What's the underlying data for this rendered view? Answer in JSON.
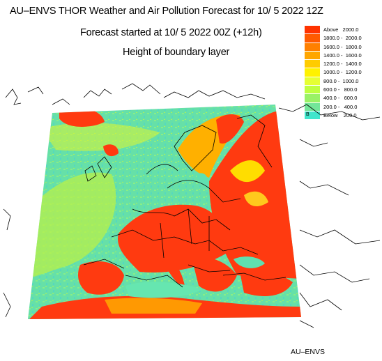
{
  "header": {
    "title": "AU–ENVS THOR Weather and Air Pollution Forecast for 10/ 5 2022  12Z",
    "subtitle": "Forecast started at 10/ 5 2022  00Z (+12h)",
    "field": "Height of boundary layer"
  },
  "legend": [
    {
      "label": "Above   2000.0",
      "color": "#ff3300",
      "tag": ""
    },
    {
      "label": "1800.0 -  2000.0",
      "color": "#ff5a00",
      "tag": ""
    },
    {
      "label": "1600.0 -  1800.0",
      "color": "#ff8000",
      "tag": ""
    },
    {
      "label": "1400.0 -  1600.0",
      "color": "#ffa600",
      "tag": ""
    },
    {
      "label": "1200.0 -  1400.0",
      "color": "#ffcc00",
      "tag": ""
    },
    {
      "label": "1000.0 -  1200.0",
      "color": "#fff200",
      "tag": ""
    },
    {
      "label": "800.0 -  1000.0",
      "color": "#e6ff33",
      "tag": ""
    },
    {
      "label": "600.0 -   800.0",
      "color": "#bfff40",
      "tag": ""
    },
    {
      "label": "400.0 -   600.0",
      "color": "#99f266",
      "tag": ""
    },
    {
      "label": "200.0 -   400.0",
      "color": "#73e699",
      "tag": ""
    },
    {
      "label": "Below    200.0",
      "color": "#40e6cc",
      "tag": "B"
    }
  ],
  "footer": "AU–ENVS",
  "colors": {
    "ocean": "#5fe0b0",
    "land_warm": "#ff3a10",
    "land_mid": "#ffb000",
    "coast": "#000000"
  }
}
